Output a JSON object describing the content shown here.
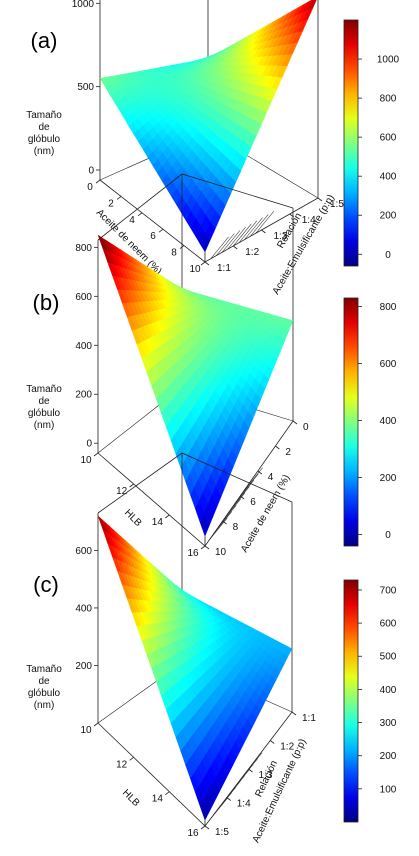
{
  "chart_data": [
    {
      "type": "surface3d",
      "panel_label": "(a)",
      "zlabel_lines": [
        "Tamaño",
        "de",
        "glóbulo",
        "(nm)"
      ],
      "z_ticks": [
        "0",
        "500",
        "1000"
      ],
      "x_axis_label": "Aceite de neem (%)",
      "x_ticks": [
        "0",
        "2",
        "4",
        "6",
        "8",
        "10"
      ],
      "y_axis_label_lines": [
        "Relación",
        "Aceite:Emulsificante (p:p)"
      ],
      "y_ticks": [
        "1:1",
        "1:2",
        "1:3",
        "1:4",
        "1:5"
      ],
      "colorbar_ticks": [
        "0",
        "200",
        "400",
        "600",
        "800",
        "1000"
      ],
      "zlim": [
        -60,
        1200
      ],
      "corners": {
        "front": 0,
        "left": 550,
        "back": 380,
        "right": 1150
      }
    },
    {
      "type": "surface3d",
      "panel_label": "(b)",
      "zlabel_lines": [
        "Tamaño",
        "de",
        "glóbulo",
        "(nm)"
      ],
      "z_ticks": [
        "0",
        "200",
        "400",
        "600",
        "800"
      ],
      "x_axis_label": "HLB",
      "x_ticks": [
        "10",
        "12",
        "14",
        "16"
      ],
      "y_axis_label_lines": [
        "Aceite de neem (%)"
      ],
      "y_ticks": [
        "0",
        "2",
        "4",
        "6",
        "8",
        "10"
      ],
      "colorbar_ticks": [
        "0",
        "200",
        "400",
        "600",
        "800"
      ],
      "zlim": [
        -40,
        830
      ],
      "corners": {
        "front": 0,
        "left": 850,
        "back": 360,
        "right": 370
      }
    },
    {
      "type": "surface3d",
      "panel_label": "(c)",
      "zlabel_lines": [
        "Tamaño",
        "de",
        "glóbulo",
        "(nm)"
      ],
      "z_ticks": [
        "200",
        "400",
        "600"
      ],
      "x_axis_label": "HLB",
      "x_ticks": [
        "10",
        "12",
        "14",
        "16"
      ],
      "y_axis_label_lines": [
        "Relación",
        "Aceite:Emulsificante (p:p)"
      ],
      "y_ticks": [
        "1:1",
        "1:2",
        "1:3",
        "1:4",
        "1:5"
      ],
      "colorbar_ticks": [
        "100",
        "200",
        "300",
        "400",
        "500",
        "600",
        "700"
      ],
      "zlim": [
        0,
        730
      ],
      "corners": {
        "front": 20,
        "left": 720,
        "back": 250,
        "right": 220
      }
    }
  ]
}
